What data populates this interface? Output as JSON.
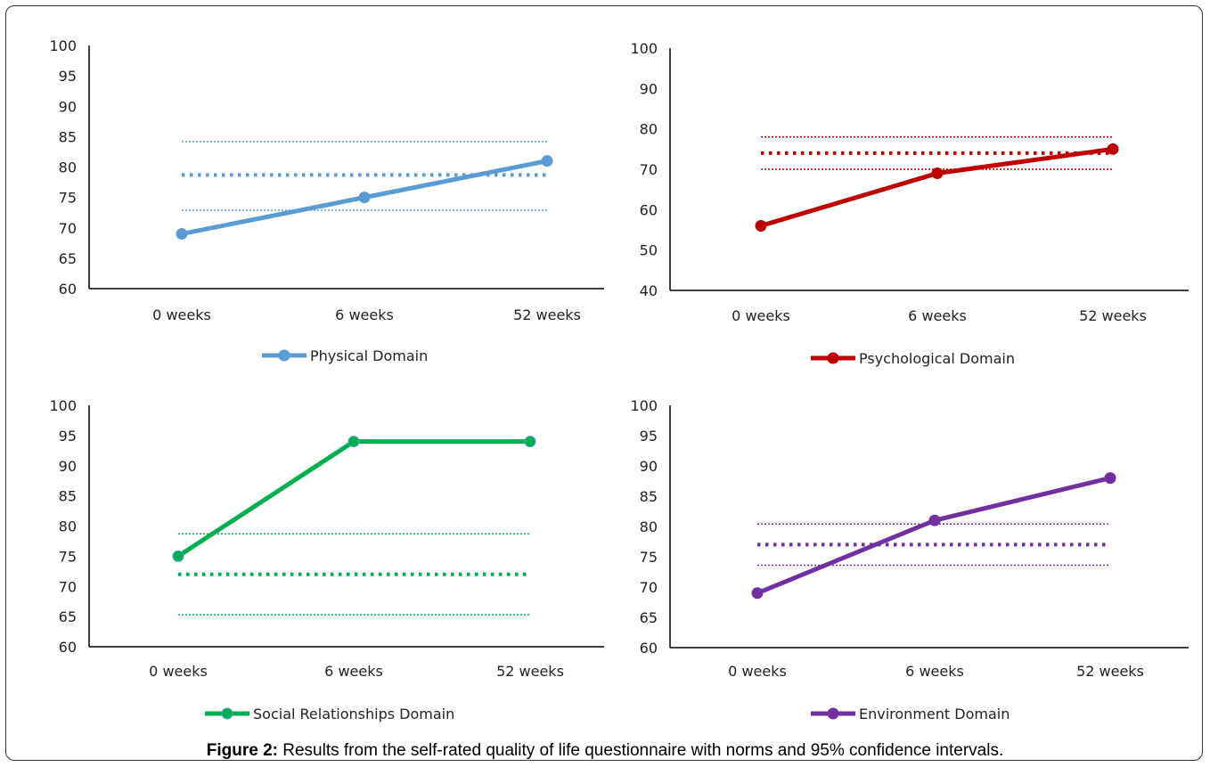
{
  "caption": {
    "label": "Figure 2:",
    "text": " Results from the self-rated quality of life questionnaire with norms and 95% confidence intervals."
  },
  "chart_data": [
    {
      "type": "line",
      "categories": [
        "0 weeks",
        "6 weeks",
        "52 weeks"
      ],
      "ylim": [
        60,
        100
      ],
      "yticks": [
        60,
        65,
        70,
        75,
        80,
        85,
        90,
        95,
        100
      ],
      "color": "#5b9bd5",
      "series": [
        {
          "name": "Physical Domain",
          "values": [
            69,
            75,
            81
          ]
        }
      ],
      "norm": 78.7,
      "ci": [
        72.9,
        84.2
      ],
      "grid": false,
      "legend": "bottom"
    },
    {
      "type": "line",
      "categories": [
        "0 weeks",
        "6 weeks",
        "52 weeks"
      ],
      "ylim": [
        40,
        100
      ],
      "yticks": [
        40,
        50,
        60,
        70,
        80,
        90,
        100
      ],
      "color": "#c00000",
      "series": [
        {
          "name": "Psychological Domain",
          "values": [
            56,
            69,
            75
          ]
        }
      ],
      "norm": 74,
      "ci": [
        70,
        78
      ],
      "grid": false,
      "legend": "bottom"
    },
    {
      "type": "line",
      "categories": [
        "0 weeks",
        "6 weeks",
        "52 weeks"
      ],
      "ylim": [
        60,
        100
      ],
      "yticks": [
        60,
        65,
        70,
        75,
        80,
        85,
        90,
        95,
        100
      ],
      "color": "#00b050",
      "series": [
        {
          "name": "Social Relationships Domain",
          "values": [
            75,
            94,
            94
          ]
        }
      ],
      "norm": 72,
      "ci": [
        65.3,
        78.7
      ],
      "grid": false,
      "legend": "bottom"
    },
    {
      "type": "line",
      "categories": [
        "0 weeks",
        "6 weeks",
        "52 weeks"
      ],
      "ylim": [
        60,
        100
      ],
      "yticks": [
        60,
        65,
        70,
        75,
        80,
        85,
        90,
        95,
        100
      ],
      "color": "#7030a0",
      "series": [
        {
          "name": "Environment Domain",
          "values": [
            69,
            81,
            88
          ]
        }
      ],
      "norm": 77,
      "ci": [
        73.6,
        80.4
      ],
      "grid": false,
      "legend": "bottom"
    }
  ]
}
